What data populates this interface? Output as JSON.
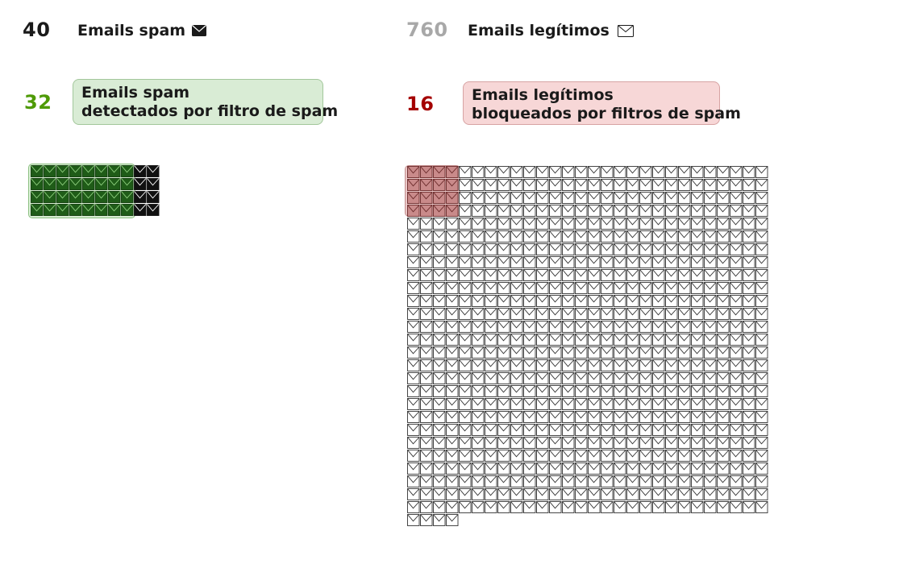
{
  "spam": {
    "count": "40",
    "label": "Emails spam",
    "icon": "filled-envelope-icon",
    "detected_count": "32",
    "detected_label_line1": "Emails spam",
    "detected_label_line2": "detectados por filtro de spam",
    "grid": {
      "columns": 10,
      "total": 40,
      "highlighted": 32
    }
  },
  "legit": {
    "count": "760",
    "label": "Emails legítimos",
    "icon": "outline-envelope-icon",
    "blocked_count": "16",
    "blocked_label_line1": "Emails legítimos",
    "blocked_label_line2": "bloqueados por filtros de spam",
    "grid": {
      "columns": 28,
      "total": 760,
      "highlighted": 16
    }
  },
  "colors": {
    "dark_text": "#1a1a1a",
    "legit_count": "#a8a8a8",
    "detected_count": "#4e9a06",
    "blocked_count": "#a40000",
    "green_box": "#d9ecd5",
    "red_box": "#f7d7d7",
    "spam_highlight_icon": "#1f5c18",
    "legit_highlight_icon": "#c98a8a"
  }
}
